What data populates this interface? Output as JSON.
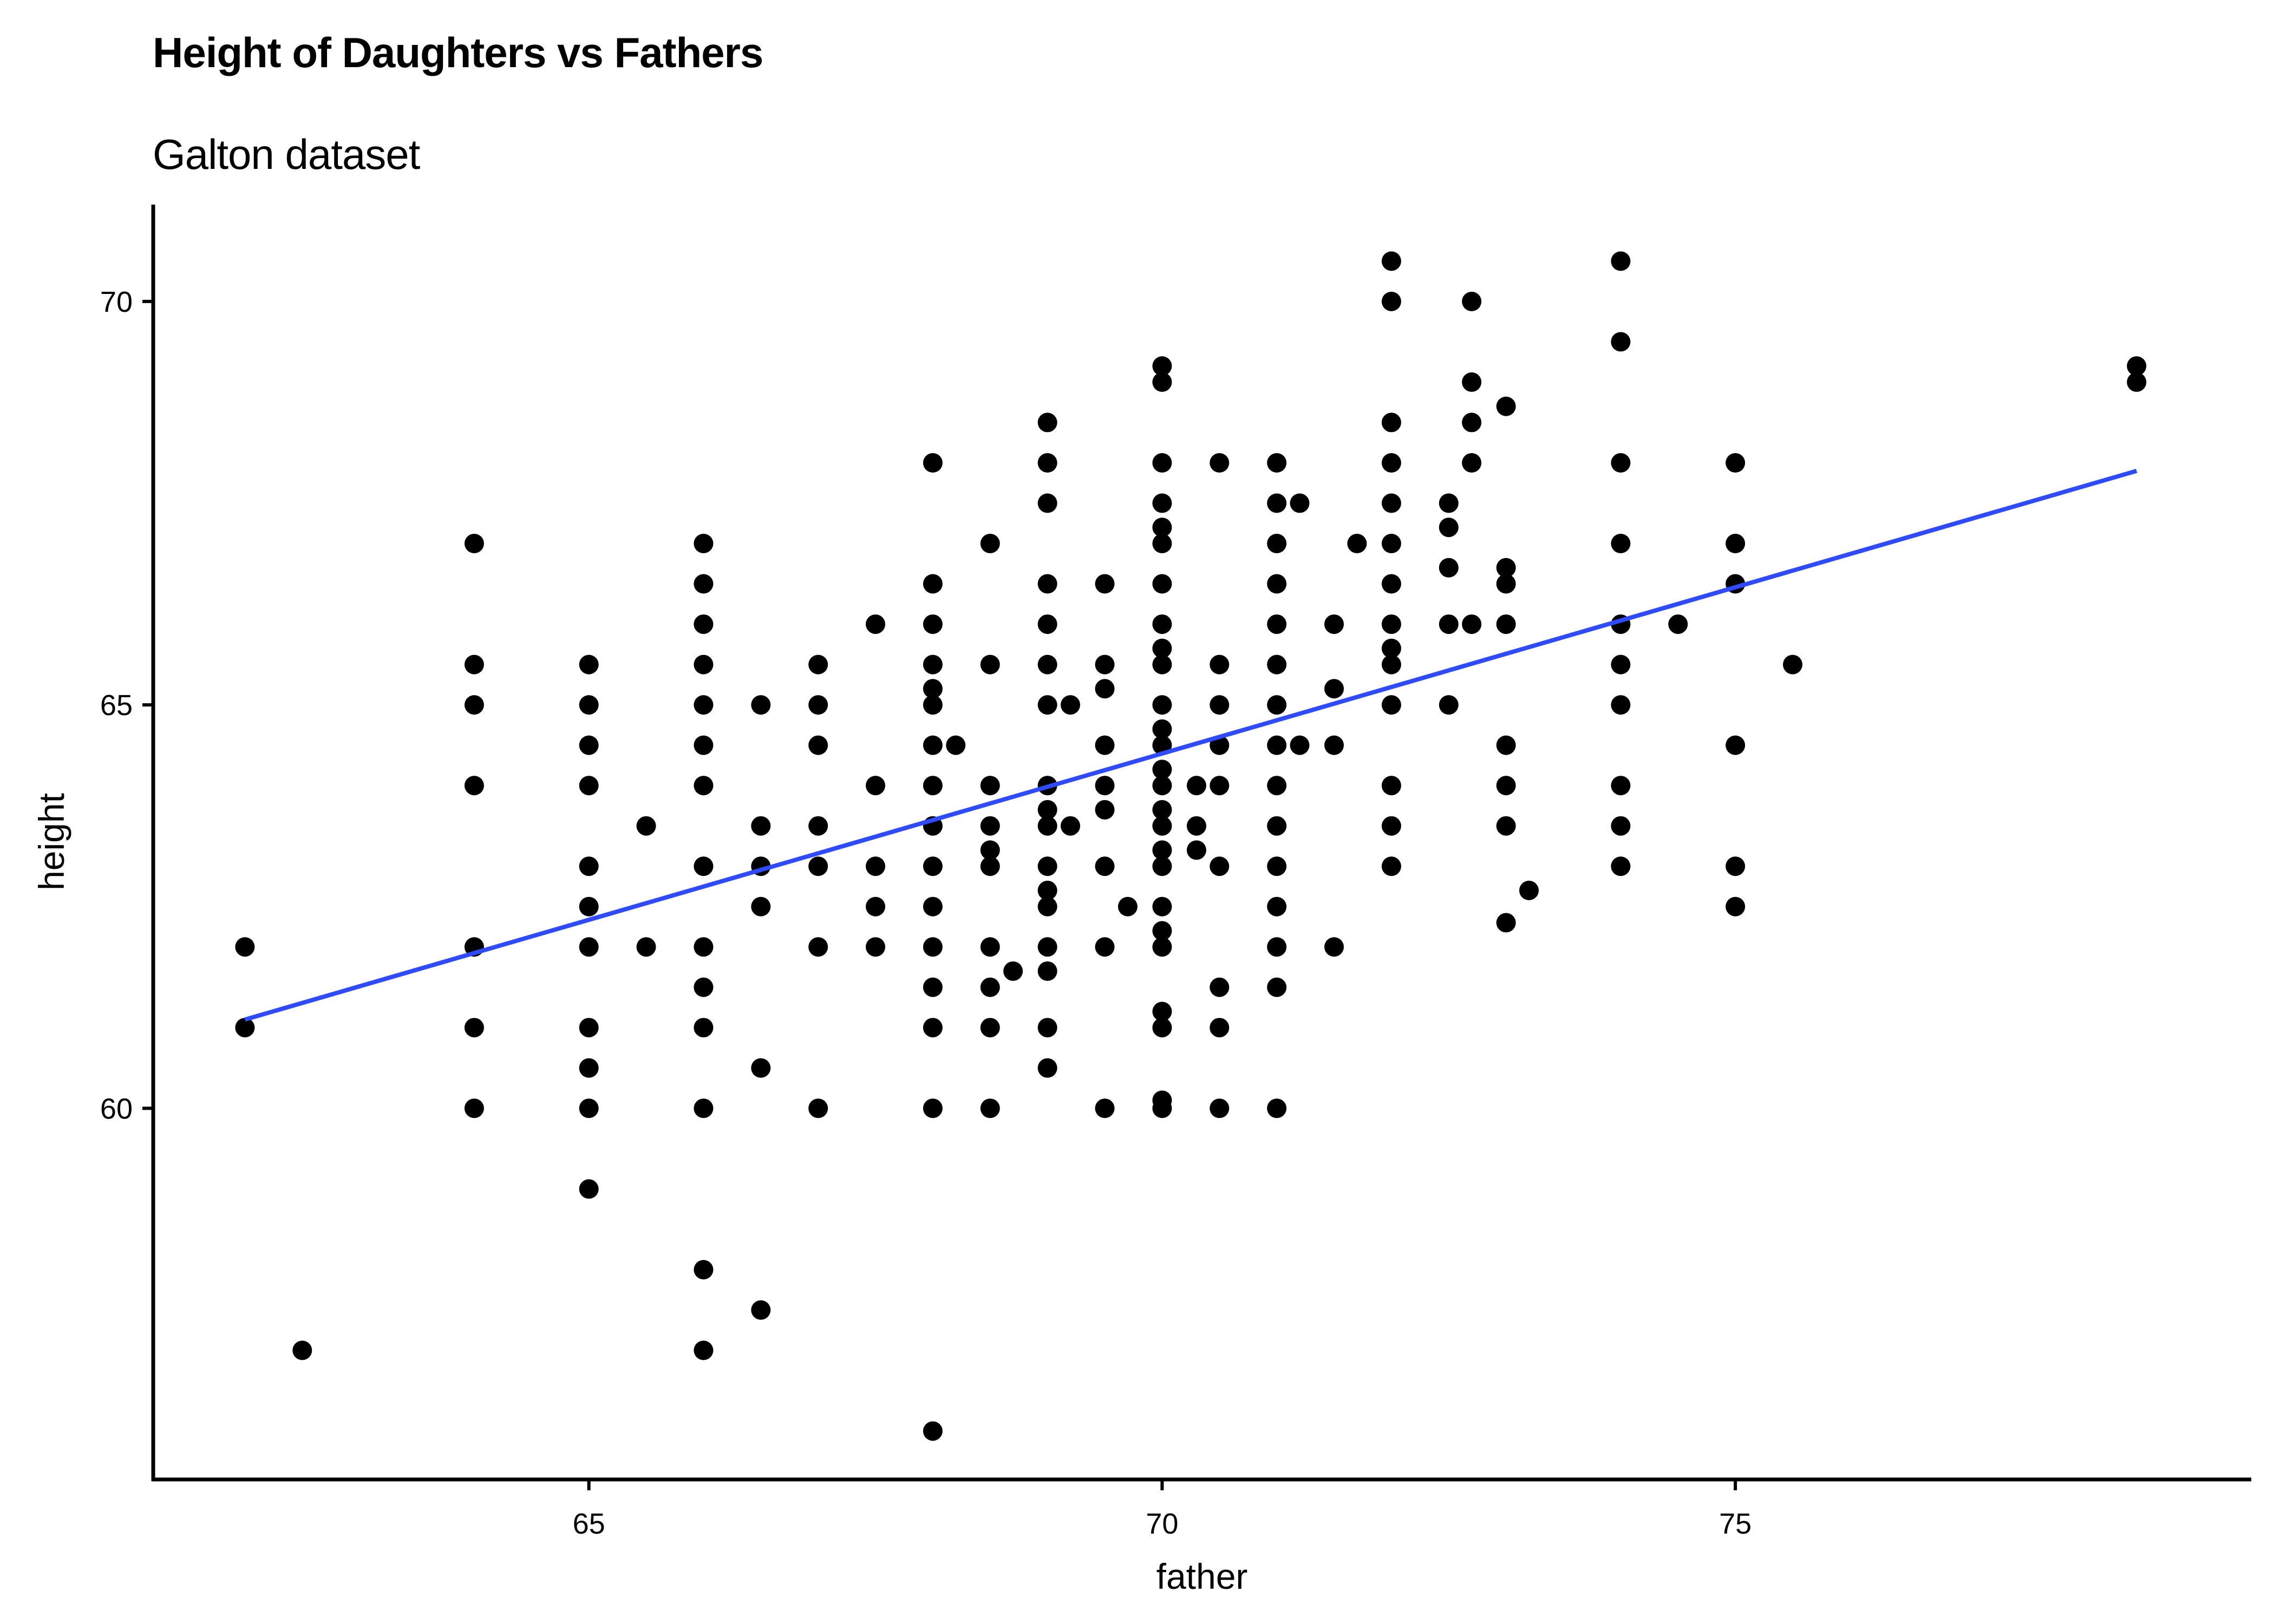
{
  "chart_data": {
    "type": "scatter",
    "title": "Height of Daughters vs Fathers",
    "subtitle": "Galton dataset",
    "xlabel": "father",
    "ylabel": "height",
    "xlim": [
      61.2,
      79.5
    ],
    "ylim": [
      55.4,
      71.2
    ],
    "xticks": [
      65,
      70,
      75
    ],
    "yticks": [
      60,
      65,
      70
    ],
    "grid": false,
    "point_color": "#000000",
    "line_color": "#2F4BFF",
    "points": [
      [
        62,
        62
      ],
      [
        62,
        61
      ],
      [
        62.5,
        57
      ],
      [
        64,
        67
      ],
      [
        64,
        65.5
      ],
      [
        64,
        65
      ],
      [
        64,
        64
      ],
      [
        64,
        62
      ],
      [
        64,
        61
      ],
      [
        64,
        60
      ],
      [
        65,
        65.5
      ],
      [
        65,
        65
      ],
      [
        65,
        64.5
      ],
      [
        65,
        64
      ],
      [
        65,
        63
      ],
      [
        65,
        62.5
      ],
      [
        65,
        62
      ],
      [
        65,
        61
      ],
      [
        65,
        60.5
      ],
      [
        65,
        60
      ],
      [
        65,
        59
      ],
      [
        65.5,
        63.5
      ],
      [
        65.5,
        62
      ],
      [
        66,
        67
      ],
      [
        66,
        66.5
      ],
      [
        66,
        66
      ],
      [
        66,
        65.5
      ],
      [
        66,
        65
      ],
      [
        66,
        64.5
      ],
      [
        66,
        64
      ],
      [
        66,
        63
      ],
      [
        66,
        62
      ],
      [
        66,
        61.5
      ],
      [
        66,
        61
      ],
      [
        66,
        60
      ],
      [
        66,
        58
      ],
      [
        66,
        57
      ],
      [
        66.5,
        65
      ],
      [
        66.5,
        63.5
      ],
      [
        66.5,
        63
      ],
      [
        66.5,
        62.5
      ],
      [
        66.5,
        60.5
      ],
      [
        66.5,
        57.5
      ],
      [
        67,
        65.5
      ],
      [
        67,
        65
      ],
      [
        67,
        64.5
      ],
      [
        67,
        63.5
      ],
      [
        67,
        63
      ],
      [
        67,
        62
      ],
      [
        67,
        60
      ],
      [
        67.5,
        66
      ],
      [
        67.5,
        64
      ],
      [
        67.5,
        63
      ],
      [
        67.5,
        62.5
      ],
      [
        67.5,
        62
      ],
      [
        68,
        68
      ],
      [
        68,
        66.5
      ],
      [
        68,
        66
      ],
      [
        68,
        65.5
      ],
      [
        68,
        65.2
      ],
      [
        68,
        65
      ],
      [
        68,
        64.5
      ],
      [
        68,
        64
      ],
      [
        68,
        63.5
      ],
      [
        68,
        63
      ],
      [
        68,
        62.5
      ],
      [
        68,
        62
      ],
      [
        68,
        61.5
      ],
      [
        68,
        61
      ],
      [
        68,
        60
      ],
      [
        68,
        56
      ],
      [
        68.2,
        64.5
      ],
      [
        68.5,
        67
      ],
      [
        68.5,
        65.5
      ],
      [
        68.5,
        64
      ],
      [
        68.5,
        63.5
      ],
      [
        68.5,
        63.2
      ],
      [
        68.5,
        63
      ],
      [
        68.5,
        62
      ],
      [
        68.5,
        61.5
      ],
      [
        68.5,
        61
      ],
      [
        68.5,
        60
      ],
      [
        68.7,
        61.7
      ],
      [
        69,
        68.5
      ],
      [
        69,
        68
      ],
      [
        69,
        67.5
      ],
      [
        69,
        66.5
      ],
      [
        69,
        66
      ],
      [
        69,
        65.5
      ],
      [
        69,
        65
      ],
      [
        69,
        64
      ],
      [
        69,
        63.7
      ],
      [
        69,
        63.5
      ],
      [
        69,
        63
      ],
      [
        69,
        62.7
      ],
      [
        69,
        62.5
      ],
      [
        69,
        62
      ],
      [
        69,
        61.7
      ],
      [
        69,
        61
      ],
      [
        69,
        60.5
      ],
      [
        69.2,
        65
      ],
      [
        69.2,
        63.5
      ],
      [
        69.5,
        66.5
      ],
      [
        69.5,
        65.5
      ],
      [
        69.5,
        65.2
      ],
      [
        69.5,
        64.5
      ],
      [
        69.5,
        64
      ],
      [
        69.5,
        63.7
      ],
      [
        69.5,
        63
      ],
      [
        69.5,
        62
      ],
      [
        69.5,
        60
      ],
      [
        69.7,
        62.5
      ],
      [
        70,
        69.2
      ],
      [
        70,
        69
      ],
      [
        70,
        68
      ],
      [
        70,
        67.5
      ],
      [
        70,
        67.2
      ],
      [
        70,
        67
      ],
      [
        70,
        66.5
      ],
      [
        70,
        66
      ],
      [
        70,
        65.7
      ],
      [
        70,
        65.5
      ],
      [
        70,
        65
      ],
      [
        70,
        64.7
      ],
      [
        70,
        64.5
      ],
      [
        70,
        64.2
      ],
      [
        70,
        64
      ],
      [
        70,
        63.7
      ],
      [
        70,
        63.5
      ],
      [
        70,
        63.2
      ],
      [
        70,
        63
      ],
      [
        70,
        62.5
      ],
      [
        70,
        62.2
      ],
      [
        70,
        62
      ],
      [
        70,
        61.2
      ],
      [
        70,
        61
      ],
      [
        70,
        60.1
      ],
      [
        70,
        60
      ],
      [
        70.3,
        64
      ],
      [
        70.3,
        63.5
      ],
      [
        70.3,
        63.2
      ],
      [
        70.5,
        68
      ],
      [
        70.5,
        65.5
      ],
      [
        70.5,
        65
      ],
      [
        70.5,
        64.5
      ],
      [
        70.5,
        64
      ],
      [
        70.5,
        63
      ],
      [
        70.5,
        61.5
      ],
      [
        70.5,
        61
      ],
      [
        70.5,
        60
      ],
      [
        71,
        68
      ],
      [
        71,
        67.5
      ],
      [
        71,
        67
      ],
      [
        71,
        66.5
      ],
      [
        71,
        66
      ],
      [
        71,
        65.5
      ],
      [
        71,
        65
      ],
      [
        71,
        64.5
      ],
      [
        71,
        64
      ],
      [
        71,
        63.5
      ],
      [
        71,
        63
      ],
      [
        71,
        62.5
      ],
      [
        71,
        62
      ],
      [
        71,
        61.5
      ],
      [
        71,
        60
      ],
      [
        71.2,
        67.5
      ],
      [
        71.2,
        64.5
      ],
      [
        71.5,
        66
      ],
      [
        71.5,
        65.2
      ],
      [
        71.5,
        64.5
      ],
      [
        71.5,
        62
      ],
      [
        71.7,
        67
      ],
      [
        72,
        70.5
      ],
      [
        72,
        70
      ],
      [
        72,
        68.5
      ],
      [
        72,
        68
      ],
      [
        72,
        67.5
      ],
      [
        72,
        67
      ],
      [
        72,
        66.5
      ],
      [
        72,
        66
      ],
      [
        72,
        65.7
      ],
      [
        72,
        65.5
      ],
      [
        72,
        65
      ],
      [
        72,
        64
      ],
      [
        72,
        63.5
      ],
      [
        72,
        63
      ],
      [
        72.5,
        67.5
      ],
      [
        72.5,
        67.2
      ],
      [
        72.5,
        66.7
      ],
      [
        72.5,
        66
      ],
      [
        72.5,
        65
      ],
      [
        72.7,
        70
      ],
      [
        72.7,
        69
      ],
      [
        72.7,
        68.5
      ],
      [
        72.7,
        68
      ],
      [
        72.7,
        66
      ],
      [
        73,
        68.7
      ],
      [
        73,
        66.7
      ],
      [
        73,
        66.5
      ],
      [
        73,
        66
      ],
      [
        73,
        64.5
      ],
      [
        73,
        64
      ],
      [
        73,
        63.5
      ],
      [
        73,
        62.3
      ],
      [
        73.2,
        62.7
      ],
      [
        74,
        70.5
      ],
      [
        74,
        69.5
      ],
      [
        74,
        68
      ],
      [
        74,
        67
      ],
      [
        74,
        66
      ],
      [
        74,
        65.5
      ],
      [
        74,
        65
      ],
      [
        74,
        64
      ],
      [
        74,
        63.5
      ],
      [
        74,
        63
      ],
      [
        74.5,
        66
      ],
      [
        75,
        68
      ],
      [
        75,
        67
      ],
      [
        75,
        66.5
      ],
      [
        75,
        64.5
      ],
      [
        75,
        63
      ],
      [
        75,
        62.5
      ],
      [
        75.5,
        65.5
      ],
      [
        78.5,
        69.2
      ],
      [
        78.5,
        69
      ]
    ],
    "fit_line": {
      "x": [
        62,
        78.5
      ],
      "y": [
        61.1,
        67.9
      ]
    }
  }
}
